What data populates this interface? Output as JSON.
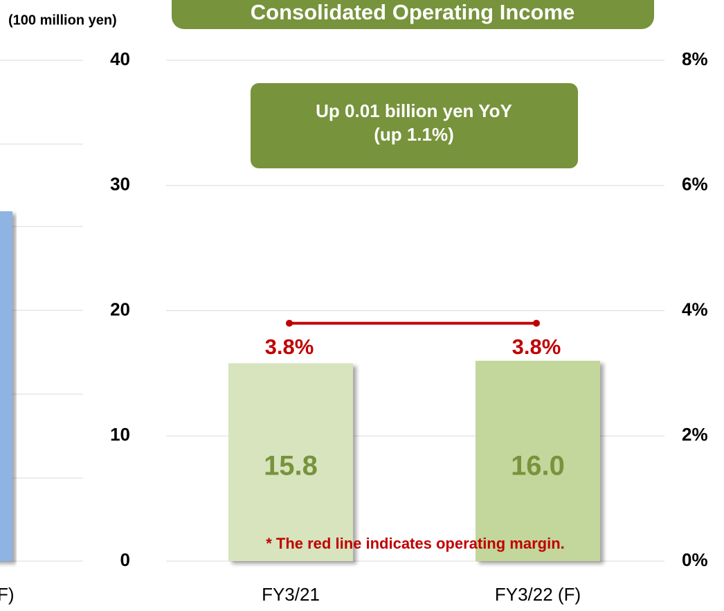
{
  "fragment_label": "F)",
  "chart_data": {
    "type": "bar",
    "title": "Consolidated Operating Income",
    "unit_label": "(100 million yen)",
    "annotation": [
      "Up 0.01 billion yen YoY",
      "(up 1.1%)"
    ],
    "footnote": "* The red line indicates operating margin.",
    "categories": [
      "FY3/21",
      "FY3/22 (F)"
    ],
    "series": [
      {
        "type": "bar",
        "colors": [
          "#d7e4bd",
          "#c3d69b"
        ],
        "values": [
          15.8,
          16.0
        ],
        "value_labels": [
          "15.8",
          "16.0"
        ],
        "label_color": "#77933c"
      },
      {
        "type": "line",
        "axis": "y2",
        "color": "#c00000",
        "values": [
          3.8,
          3.8
        ],
        "value_labels": [
          "3.8%",
          "3.8%"
        ]
      }
    ],
    "ylim": [
      0,
      40
    ],
    "yticks": [
      0,
      10,
      20,
      30,
      40
    ],
    "y2lim": [
      0,
      8
    ],
    "y2ticks": [
      {
        "value": 0,
        "label": "0%"
      },
      {
        "value": 2,
        "label": "2%"
      },
      {
        "value": 4,
        "label": "4%"
      },
      {
        "value": 6,
        "label": "6%"
      },
      {
        "value": 8,
        "label": "8%"
      }
    ],
    "grid": true
  }
}
